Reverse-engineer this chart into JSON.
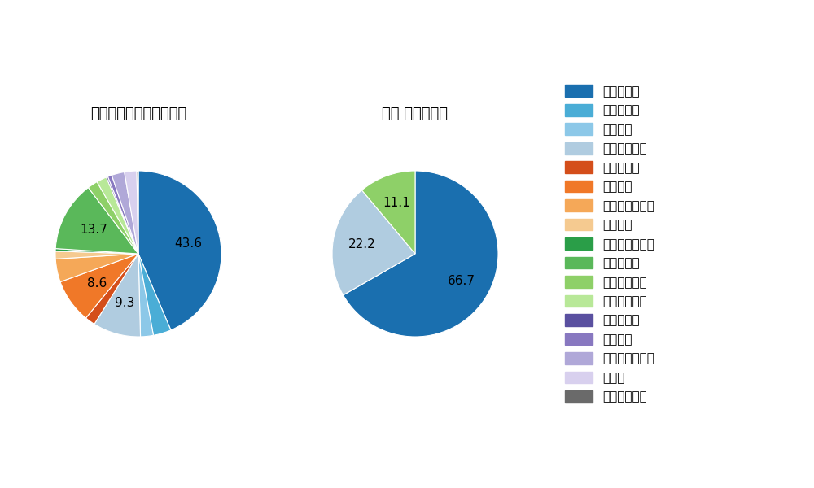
{
  "left_title": "パ・リーグ全プレイヤー",
  "right_title": "鈴木 健矢　選手",
  "pitch_types": [
    "ストレート",
    "ツーシーム",
    "シュート",
    "カットボール",
    "スプリット",
    "フォーク",
    "チェンジアップ",
    "シンカー",
    "高速スライダー",
    "スライダー",
    "縦スライダー",
    "パワーカーブ",
    "スクリュー",
    "ナックル",
    "ナックルカーブ",
    "カーブ",
    "スローカーブ"
  ],
  "colors": [
    "#1a6faf",
    "#4aadd6",
    "#8cc8e8",
    "#b0cce0",
    "#d44e1a",
    "#f07828",
    "#f5a858",
    "#f5ca90",
    "#2a9e48",
    "#5ab85a",
    "#8ed068",
    "#b8e898",
    "#5a50a0",
    "#8878c0",
    "#b0a8d8",
    "#d8d0ee",
    "#6a6a6a"
  ],
  "left_values": [
    43.6,
    3.5,
    2.5,
    9.3,
    2.0,
    8.6,
    4.5,
    1.5,
    0.5,
    13.7,
    2.0,
    2.0,
    0.3,
    0.8,
    2.5,
    2.4,
    0.3
  ],
  "left_labels": [
    "43.6",
    "",
    "",
    "9.3",
    "",
    "8.6",
    "",
    "",
    "",
    "13.7",
    "",
    "",
    "",
    "",
    "",
    "",
    ""
  ],
  "right_values": [
    66.7,
    0,
    0,
    22.2,
    0,
    0,
    0,
    0,
    0,
    0,
    11.1,
    0,
    0,
    0,
    0,
    0,
    0
  ],
  "right_labels": [
    "66.7",
    "",
    "",
    "22.2",
    "",
    "",
    "",
    "",
    "",
    "",
    "11.1",
    "",
    "",
    "",
    "",
    "",
    ""
  ],
  "bg_color": "#ffffff",
  "text_color": "#000000",
  "label_fontsize": 11,
  "title_fontsize": 13,
  "legend_fontsize": 11
}
